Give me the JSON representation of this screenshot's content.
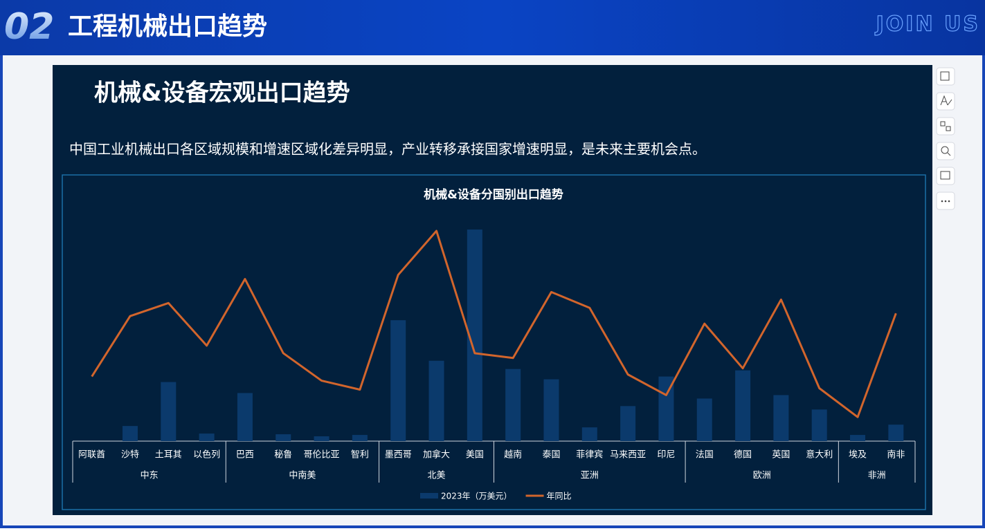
{
  "header": {
    "number": "02",
    "title": "工程机械出口趋势",
    "tagline": "JOIN US"
  },
  "slide": {
    "title": "机械&设备宏观出口趋势",
    "subtitle": "中国工业机械出口各区域规模和增速区域化差异明显，产业转移承接国家增速明显，是未来主要机会点。"
  },
  "chart_data": {
    "type": "bar",
    "title": "机械&设备分国别出口趋势",
    "categories": [
      "阿联酋",
      "沙特",
      "土耳其",
      "以色列",
      "巴西",
      "秘鲁",
      "哥伦比亚",
      "智利",
      "墨西哥",
      "加拿大",
      "美国",
      "越南",
      "泰国",
      "菲律宾",
      "马来西亚",
      "印尼",
      "法国",
      "德国",
      "英国",
      "意大利",
      "埃及",
      "南非"
    ],
    "groups": [
      {
        "label": "中东",
        "size": 4
      },
      {
        "label": "中南美",
        "size": 4
      },
      {
        "label": "北美",
        "size": 3
      },
      {
        "label": "亚洲",
        "size": 5
      },
      {
        "label": "欧洲",
        "size": 4
      },
      {
        "label": "非洲",
        "size": 2
      }
    ],
    "series": [
      {
        "name": "2023年（万美元）",
        "type": "bar",
        "color": "#0b3a6c",
        "values": [
          0,
          22,
          86,
          11,
          70,
          10,
          7,
          9,
          176,
          117,
          308,
          105,
          90,
          20,
          51,
          94,
          62,
          103,
          67,
          46,
          9,
          24
        ]
      },
      {
        "name": "年同比",
        "type": "line",
        "axis": "y2",
        "color": "#d2652c",
        "values": [
          94,
          182,
          201,
          139,
          236,
          128,
          88,
          75,
          242,
          306,
          128,
          121,
          217,
          194,
          97,
          67,
          171,
          106,
          206,
          77,
          35,
          186
        ]
      }
    ],
    "ylim": [
      0,
      310
    ],
    "y2lim": [
      0,
      310
    ],
    "legend": "bottom"
  }
}
